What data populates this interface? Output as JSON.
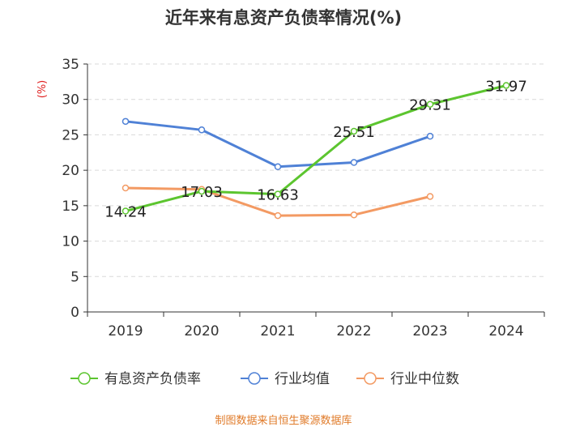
{
  "chart_data": {
    "type": "line",
    "title": "近年来有息资产负债率情况(%)",
    "ylabel": "(%)",
    "categories": [
      "2019",
      "2020",
      "2021",
      "2022",
      "2023",
      "2024"
    ],
    "ylim": [
      0,
      35
    ],
    "yticks": [
      0,
      5,
      10,
      15,
      20,
      25,
      30,
      35
    ],
    "grid": true,
    "legend_position": "bottom",
    "series": [
      {
        "name": "有息资产负债率",
        "color": "#5cc52f",
        "values": [
          14.24,
          17.03,
          16.63,
          25.51,
          29.31,
          31.97
        ],
        "data_labels": [
          "14.24",
          "17.03",
          "16.63",
          "25.51",
          "29.31",
          "31.97"
        ]
      },
      {
        "name": "行业均值",
        "color": "#4f81d6",
        "values": [
          26.9,
          25.7,
          20.5,
          21.1,
          24.8,
          null
        ]
      },
      {
        "name": "行业中位数",
        "color": "#f39a63",
        "values": [
          17.5,
          17.3,
          13.6,
          13.7,
          16.3,
          null
        ]
      }
    ]
  },
  "source": "制图数据来自恒生聚源数据库"
}
